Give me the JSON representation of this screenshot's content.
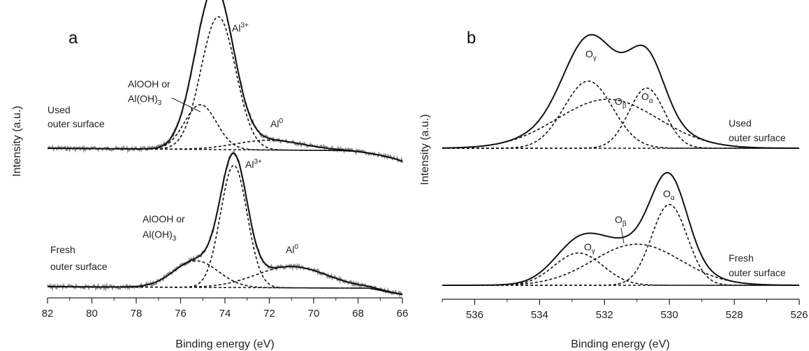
{
  "chart_data": [
    {
      "type": "line",
      "panel_label": "a",
      "xlabel": "Binding energy (eV)",
      "ylabel": "Intensity (a.u.)",
      "xlim": [
        82,
        66
      ],
      "x_ticks": [
        82,
        80,
        78,
        76,
        74,
        72,
        70,
        68,
        66
      ],
      "traces": [
        {
          "label": "Used outer surface",
          "peaks": [
            {
              "label": "Al3+",
              "center": 74.3,
              "height": 0.95
            },
            {
              "label": "AlOOH or Al(OH)3",
              "center": 75.1,
              "height": 0.32
            },
            {
              "label": "Al0",
              "center": 72.0,
              "height": 0.07
            }
          ]
        },
        {
          "label": "Fresh outer surface",
          "peaks": [
            {
              "label": "Al3+",
              "center": 73.6,
              "height": 0.92
            },
            {
              "label": "AlOOH or Al(OH)3",
              "center": 75.3,
              "height": 0.2
            },
            {
              "label": "Al0",
              "center": 71.0,
              "height": 0.16
            }
          ]
        }
      ]
    },
    {
      "type": "line",
      "panel_label": "b",
      "xlabel": "Binding energy (eV)",
      "ylabel": "Intensity (a.u.)",
      "xlim": [
        537,
        526
      ],
      "x_ticks": [
        536,
        534,
        532,
        530,
        528,
        526
      ],
      "traces": [
        {
          "label": "Used outer surface",
          "peaks": [
            {
              "label": "Oγ",
              "center": 532.5,
              "height": 0.48
            },
            {
              "label": "Oβ",
              "center": 531.9,
              "height": 0.35
            },
            {
              "label": "Oα",
              "center": 530.7,
              "height": 0.43
            }
          ]
        },
        {
          "label": "Fresh outer surface",
          "peaks": [
            {
              "label": "Oγ",
              "center": 532.8,
              "height": 0.22
            },
            {
              "label": "Oβ",
              "center": 531.0,
              "height": 0.28
            },
            {
              "label": "Oα",
              "center": 530.0,
              "height": 0.55
            }
          ]
        }
      ]
    }
  ],
  "text": {
    "a_used_1": "Used",
    "a_used_2": "outer surface",
    "a_fresh_1": "Fresh",
    "a_fresh_2": "outer surface",
    "b_used_1": "Used",
    "b_used_2": "outer surface",
    "b_fresh_1": "Fresh",
    "b_fresh_2": "outer surface",
    "alooh_1": "AlOOH or",
    "aloh_a": "Al(OH)",
    "aloh_sub": "3",
    "al": "Al",
    "al3_sup": "3+",
    "al0_sup": "0",
    "o": "O",
    "gamma": "γ",
    "beta": "β",
    "alpha": "α"
  },
  "colors": {
    "envelope": "#111111",
    "component": "#111111",
    "raw": "#8c8c8c"
  }
}
